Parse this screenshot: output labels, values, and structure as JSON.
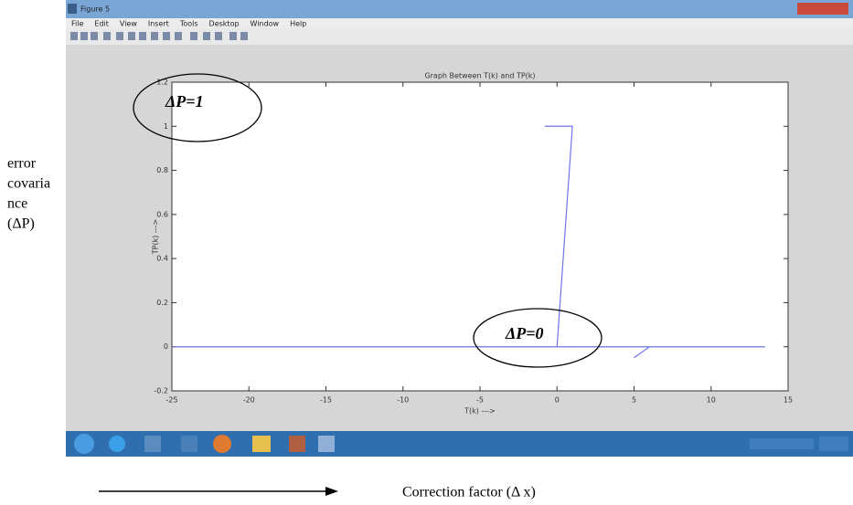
{
  "window": {
    "title": "Figure 5",
    "menu": [
      "File",
      "Edit",
      "View",
      "Insert",
      "Tools",
      "Desktop",
      "Window",
      "Help"
    ]
  },
  "chart_data": {
    "type": "line",
    "title": "Graph Between T(k) and TP(k)",
    "x_label": "T(k) --->",
    "y_label": "TP(k) --->",
    "x": [
      -0.8,
      1,
      0,
      -25,
      13.5,
      null,
      5,
      6
    ],
    "series": [
      {
        "name": "TP(k)",
        "color": "#6f74e8",
        "values": [
          1,
          1,
          0,
          0,
          0,
          null,
          -0.05,
          0
        ]
      }
    ],
    "xlim": [
      -25,
      15
    ],
    "xticks": [
      -25,
      -20,
      -15,
      -10,
      -5,
      0,
      5,
      10,
      15
    ],
    "ylim": [
      -0.2,
      1.2
    ],
    "yticks": [
      -0.2,
      0,
      0.2,
      0.4,
      0.6,
      0.8,
      1,
      1.2
    ],
    "grid": false
  },
  "annotations": {
    "top": "ΔP=1",
    "bottom": "ΔP=0",
    "y_caption": [
      "error",
      "covaria",
      "nce",
      "(ΔP)"
    ],
    "x_caption": "Correction factor (Δ x)"
  }
}
